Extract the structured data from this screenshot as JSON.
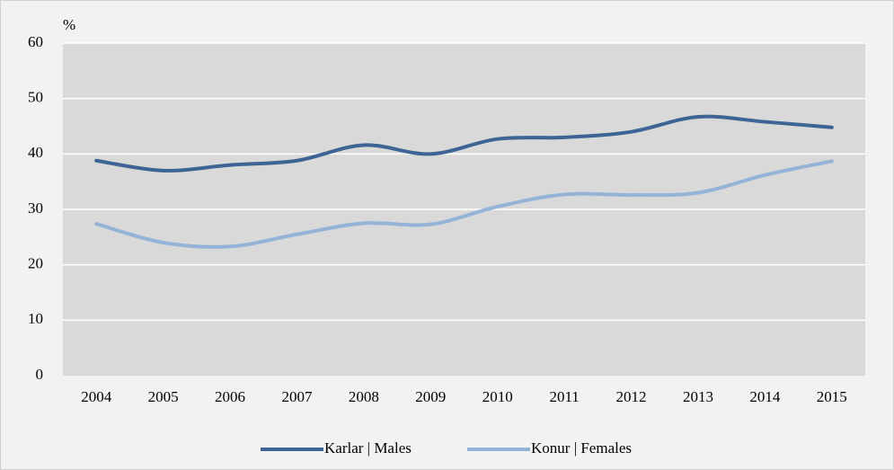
{
  "chart_data": {
    "type": "line",
    "y_axis_label": "%",
    "categories": [
      "2004",
      "2005",
      "2006",
      "2007",
      "2008",
      "2009",
      "2010",
      "2011",
      "2012",
      "2013",
      "2014",
      "2015"
    ],
    "series": [
      {
        "name": "Karlar | Males",
        "color": "#3d6494",
        "values": [
          38.8,
          37,
          38,
          38.8,
          41.6,
          40,
          42.7,
          43,
          44,
          46.7,
          45.8,
          44.8
        ]
      },
      {
        "name": "Konur | Females",
        "color": "#95b3d7",
        "values": [
          27.4,
          24,
          23.3,
          25.5,
          27.5,
          27.3,
          30.5,
          32.7,
          32.6,
          33,
          36.2,
          38.7
        ]
      }
    ],
    "ylim": [
      0,
      60
    ],
    "yticks": [
      0,
      10,
      20,
      30,
      40,
      50,
      60
    ],
    "grid": true,
    "legend": "bottom"
  }
}
